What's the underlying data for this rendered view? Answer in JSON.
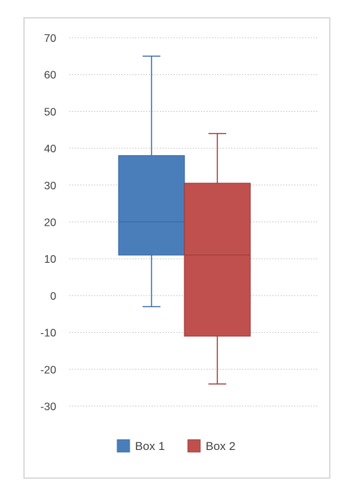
{
  "chart_data": {
    "type": "box",
    "title": "",
    "xlabel": "",
    "ylabel": "",
    "ylim": [
      -30,
      70
    ],
    "yticks": [
      70,
      60,
      50,
      40,
      30,
      20,
      10,
      0,
      -10,
      -20,
      -30
    ],
    "grid": true,
    "legend_position": "bottom",
    "series": [
      {
        "name": "Box 1",
        "color": "#4a7ebb",
        "border": "#3a6aa3",
        "min": -3,
        "q1": 11,
        "median": 20,
        "q3": 38,
        "max": 65
      },
      {
        "name": "Box 2",
        "color": "#c0504d",
        "border": "#9c3b39",
        "min": -24,
        "q1": -11,
        "median": 11,
        "q3": 30.5,
        "max": 44
      }
    ]
  }
}
